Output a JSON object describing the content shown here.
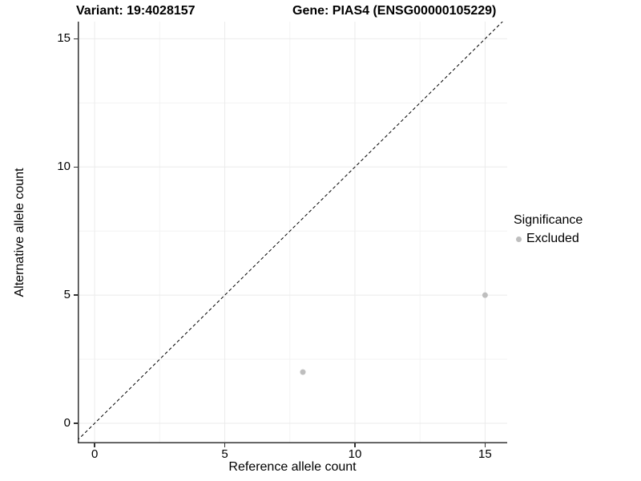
{
  "chart_data": {
    "type": "scatter",
    "titles": {
      "left": "Variant: 19:4028157",
      "right": "Gene: PIAS4 (ENSG00000105229)"
    },
    "xlabel": "Reference allele count",
    "ylabel": "Alternative allele count",
    "xlim": [
      -0.65,
      15.85
    ],
    "ylim": [
      -0.78,
      15.67
    ],
    "x_ticks": [
      0,
      5,
      10,
      15
    ],
    "y_ticks": [
      0,
      5,
      10,
      15
    ],
    "x_minor_ticks": [
      2.5,
      7.5,
      12.5
    ],
    "y_minor_ticks": [
      2.5,
      7.5,
      12.5
    ],
    "grid": true,
    "legend": {
      "title": "Significance",
      "position": "right",
      "entries": [
        {
          "label": "Excluded",
          "color": "#bebebe"
        }
      ]
    },
    "series": [
      {
        "name": "Excluded",
        "color": "#bebebe",
        "points": [
          {
            "x": 8,
            "y": 2
          },
          {
            "x": 15,
            "y": 5
          }
        ]
      }
    ],
    "reference_line": {
      "type": "identity (y = x)",
      "linetype": "dashed",
      "color": "#000000"
    },
    "style": {
      "major_grid_color": "#ebebeb",
      "minor_grid_color": "#f3f3f3",
      "axis_line_color": "#333333",
      "tick_color": "#333333",
      "text_color": "#000000",
      "background": "#ffffff"
    }
  }
}
